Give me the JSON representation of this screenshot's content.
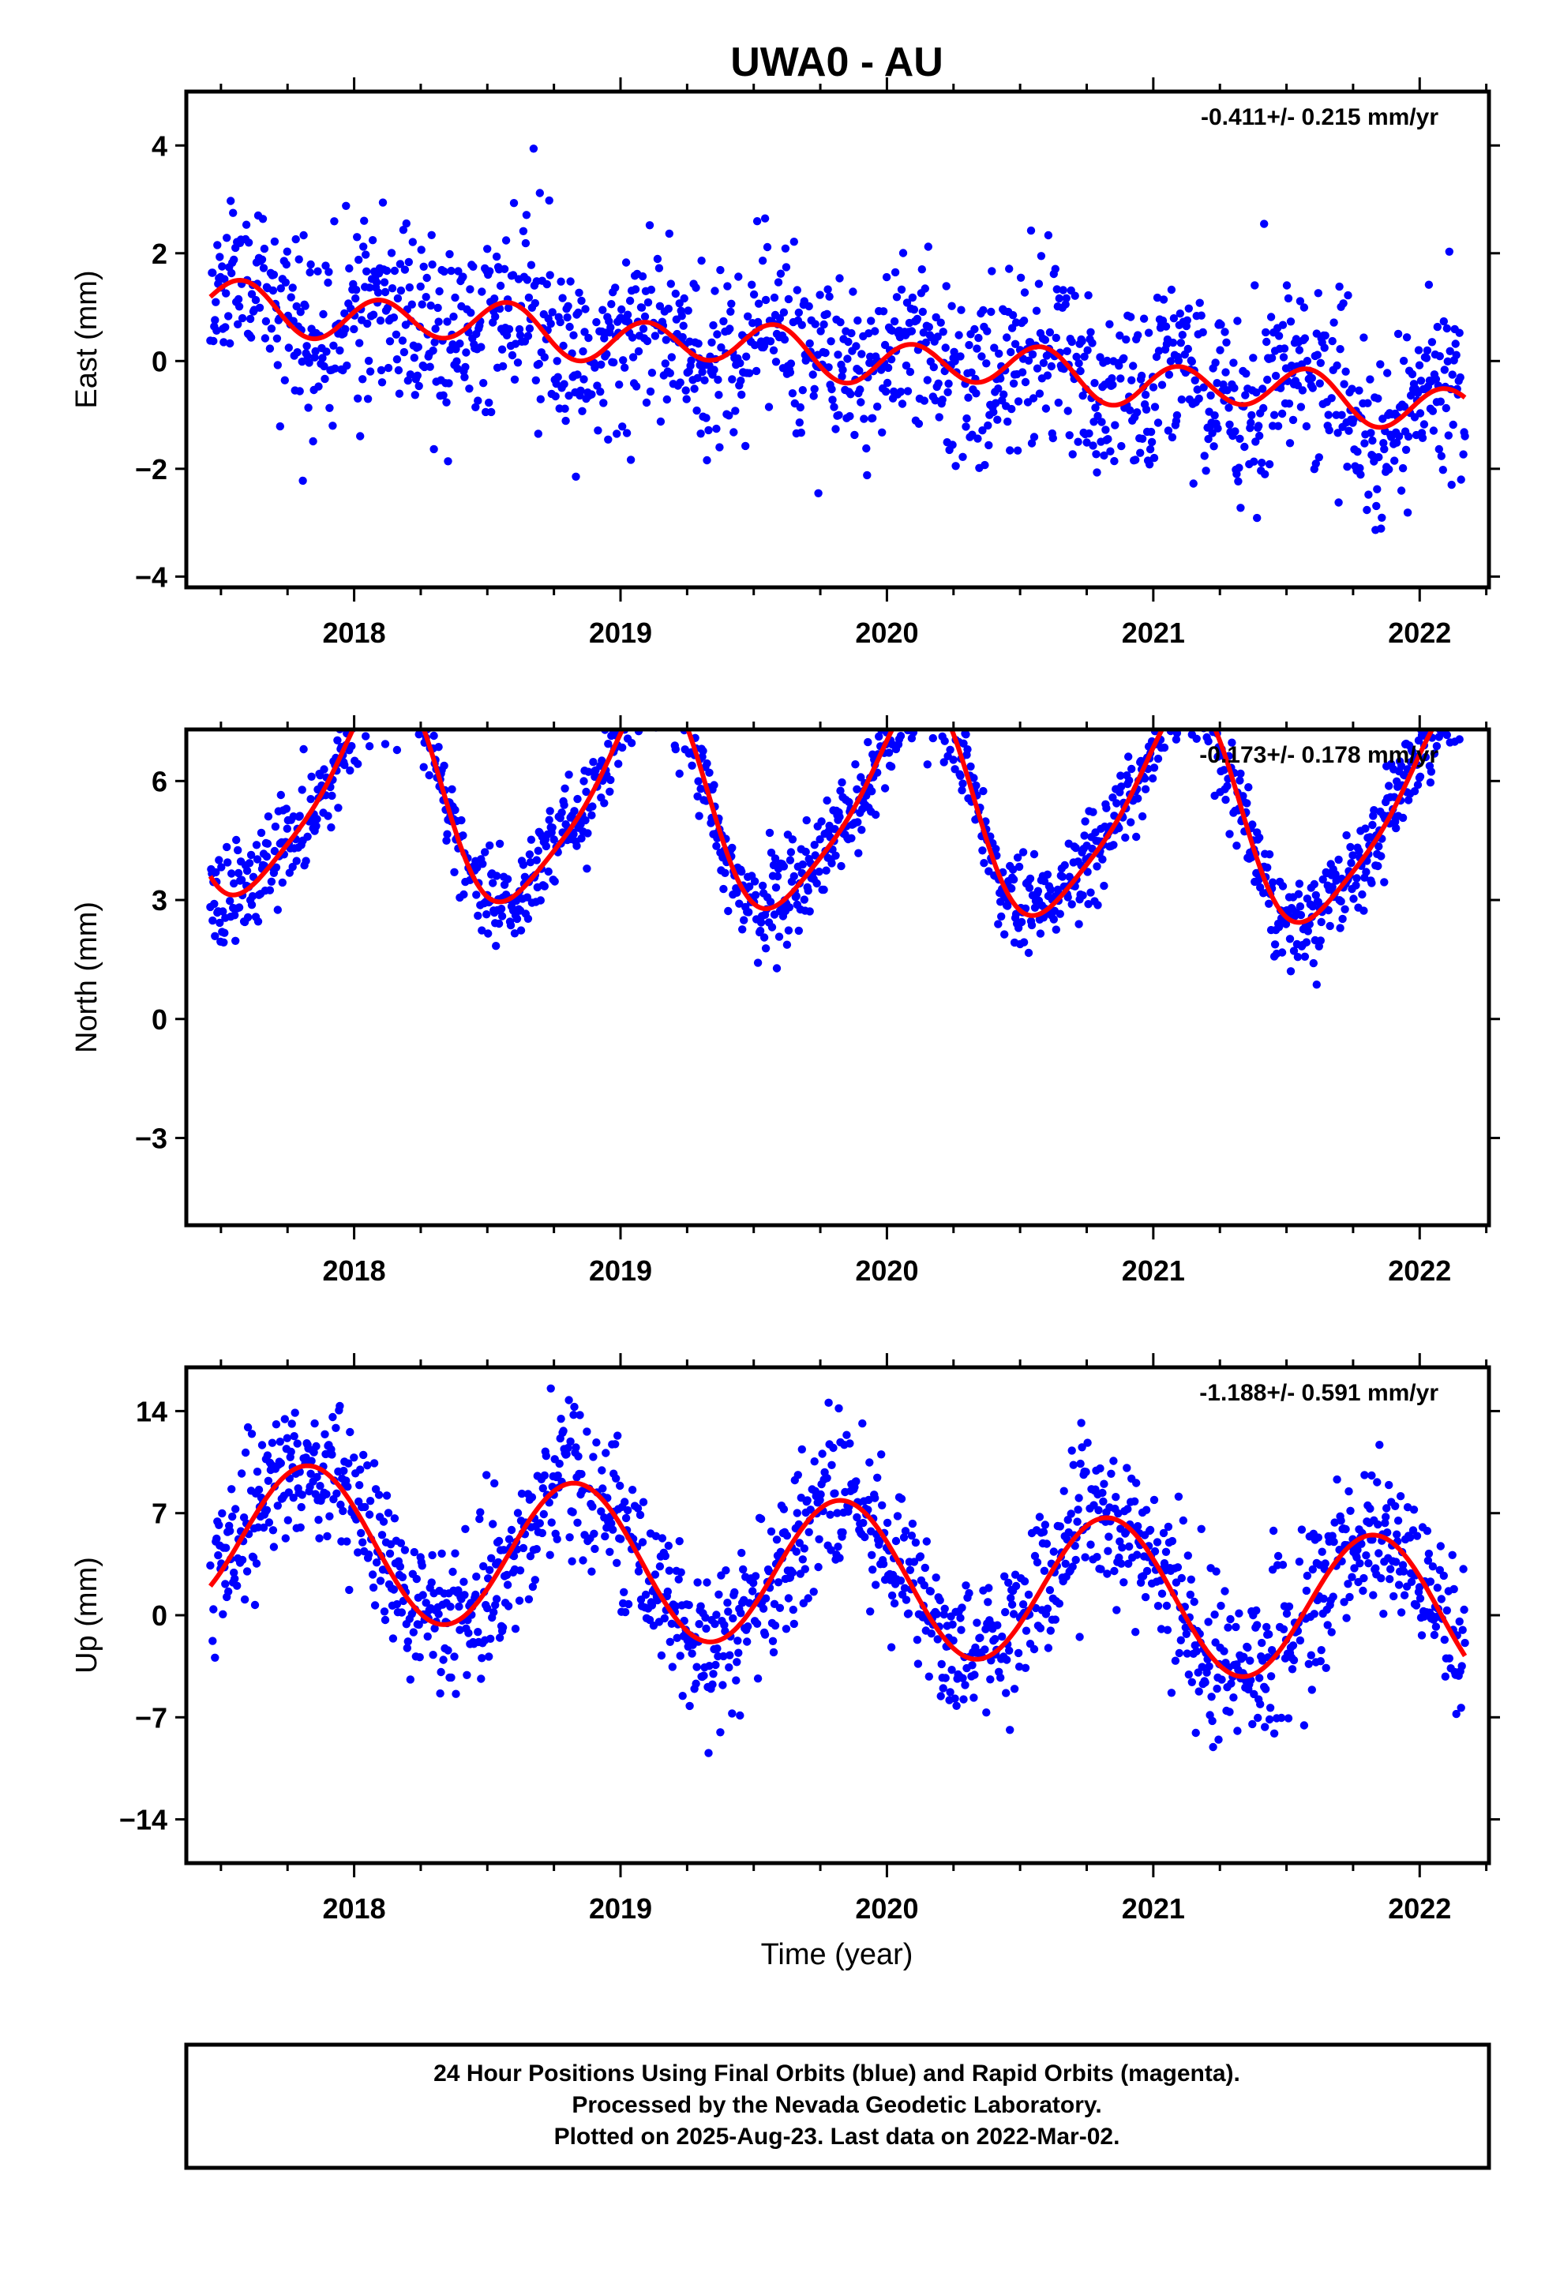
{
  "colors": {
    "points": "#0000ff",
    "fit": "#ff0000",
    "frame": "#000000"
  },
  "chart_data": [
    {
      "type": "scatter",
      "title": "UWA0 - AU",
      "ylabel": "East (mm)",
      "xlabel": "",
      "rate": "-0.411+/- 0.215 mm/yr",
      "xlim": [
        2017.37,
        2022.26
      ],
      "ylim": [
        -4.2,
        5.0
      ],
      "yticks": [
        4,
        2,
        0,
        -2,
        -4
      ],
      "ytick_labels": [
        "4",
        "2",
        "0",
        "−2",
        "−4"
      ],
      "xticks": [
        2018,
        2019,
        2020,
        2021,
        2022
      ],
      "xtick_labels": [
        "2018",
        "2019",
        "2020",
        "2021",
        "2022"
      ],
      "fit": {
        "a0": 1.19,
        "trend": -0.411,
        "x0": 2017.46,
        "s1": 0.05,
        "c1": -0.12,
        "s2": 0.35,
        "c2": 0.18
      },
      "scatter": {
        "amplitude_x": 0.2,
        "noise_sd": 0.85,
        "seed": 11,
        "range": [
          2017.46,
          2022.17
        ]
      },
      "grid": false
    },
    {
      "type": "scatter",
      "title": "",
      "ylabel": "North (mm)",
      "xlabel": "",
      "rate": "-0.173+/- 0.178 mm/yr",
      "xlim": [
        2017.37,
        2022.26
      ],
      "ylim": [
        -5.2,
        7.3
      ],
      "yticks": [
        6,
        3,
        0,
        -3
      ],
      "ytick_labels": [
        "6",
        "3",
        "0",
        "−3"
      ],
      "xticks": [
        2018,
        2019,
        2020,
        2021,
        2022
      ],
      "xtick_labels": [
        "2018",
        "2019",
        "2020",
        "2021",
        "2022"
      ],
      "fit": {
        "a0": 3.6,
        "trend": -0.173,
        "x0": 2017.46,
        "s1": 1.6,
        "c1": 2.1,
        "s2": 0.35,
        "c2": -0.35
      },
      "scatter": {
        "amplitude_x": 0.0,
        "noise_sd": 0.6,
        "seed": 23,
        "range": [
          2017.46,
          2022.17
        ]
      },
      "grid": false
    },
    {
      "type": "scatter",
      "title": "",
      "ylabel": "Up (mm)",
      "xlabel": "Time (year)",
      "rate": "-1.188+/- 0.591 mm/yr",
      "xlim": [
        2017.37,
        2022.26
      ],
      "ylim": [
        -17.0,
        17.0
      ],
      "yticks": [
        14,
        7,
        0,
        -7,
        -14
      ],
      "ytick_labels": [
        "14",
        "7",
        "0",
        "−7",
        "−14"
      ],
      "xticks": [
        2018,
        2019,
        2020,
        2021,
        2022
      ],
      "xtick_labels": [
        "2018",
        "2019",
        "2020",
        "2021",
        "2022"
      ],
      "fit": {
        "a0": 2.0,
        "trend": -1.188,
        "x0": 2017.46,
        "s1": -4.5,
        "c1": 2.5,
        "s2": 0.0,
        "c2": 0.0
      },
      "scatter": {
        "amplitude_x": 0.0,
        "noise_sd": 2.6,
        "seed": 37,
        "range": [
          2017.46,
          2022.17
        ]
      },
      "grid": false
    }
  ],
  "footer": {
    "line1": "24 Hour Positions Using Final Orbits (blue) and Rapid Orbits (magenta).",
    "line2": "Processed by the Nevada Geodetic Laboratory.",
    "line3": "Plotted on 2025-Aug-23. Last data on 2022-Mar-02."
  }
}
